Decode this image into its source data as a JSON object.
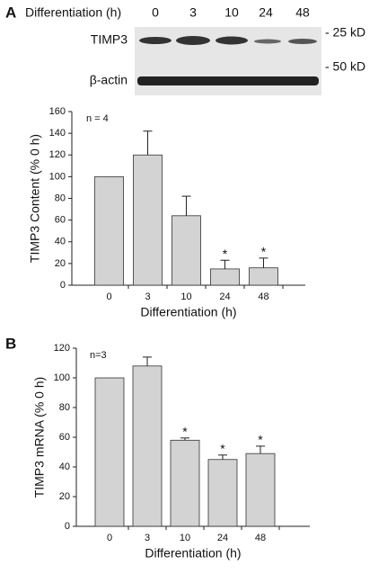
{
  "panel_labels": [
    "A",
    "B"
  ],
  "blot": {
    "header": "Differentiation (h)",
    "lanes": [
      "0",
      "3",
      "10",
      "24",
      "48"
    ],
    "rows": [
      "TIMP3",
      "β-actin"
    ],
    "markers": [
      "- 25 kD",
      "- 50 kD"
    ]
  },
  "chart_data": [
    {
      "type": "bar",
      "y_label": "TIMP3 Content (% 0 h)",
      "x_label": "Differentiation (h)",
      "annotation": "n = 4",
      "categories": [
        "0",
        "3",
        "10",
        "24",
        "48"
      ],
      "values": [
        100,
        120,
        64,
        15,
        16
      ],
      "errors": [
        0,
        22,
        18,
        8,
        9
      ],
      "significance": [
        null,
        null,
        null,
        "*",
        "*"
      ],
      "color": "#d3d3d3",
      "ylim": [
        0,
        160
      ],
      "yticks": [
        0,
        20,
        40,
        60,
        80,
        100,
        120,
        140,
        160
      ]
    },
    {
      "type": "bar",
      "y_label": "TIMP3 mRNA (% 0 h)",
      "x_label": "Differentiation (h)",
      "annotation": "n=3",
      "categories": [
        "0",
        "3",
        "10",
        "24",
        "48"
      ],
      "values": [
        100,
        108,
        58,
        45,
        49
      ],
      "errors": [
        0,
        6,
        1.5,
        3,
        5
      ],
      "significance": [
        null,
        null,
        "*",
        "*",
        "*"
      ],
      "color": "#d3d3d3",
      "ylim": [
        0,
        120
      ],
      "yticks": [
        0,
        20,
        40,
        60,
        80,
        100,
        120
      ]
    }
  ]
}
